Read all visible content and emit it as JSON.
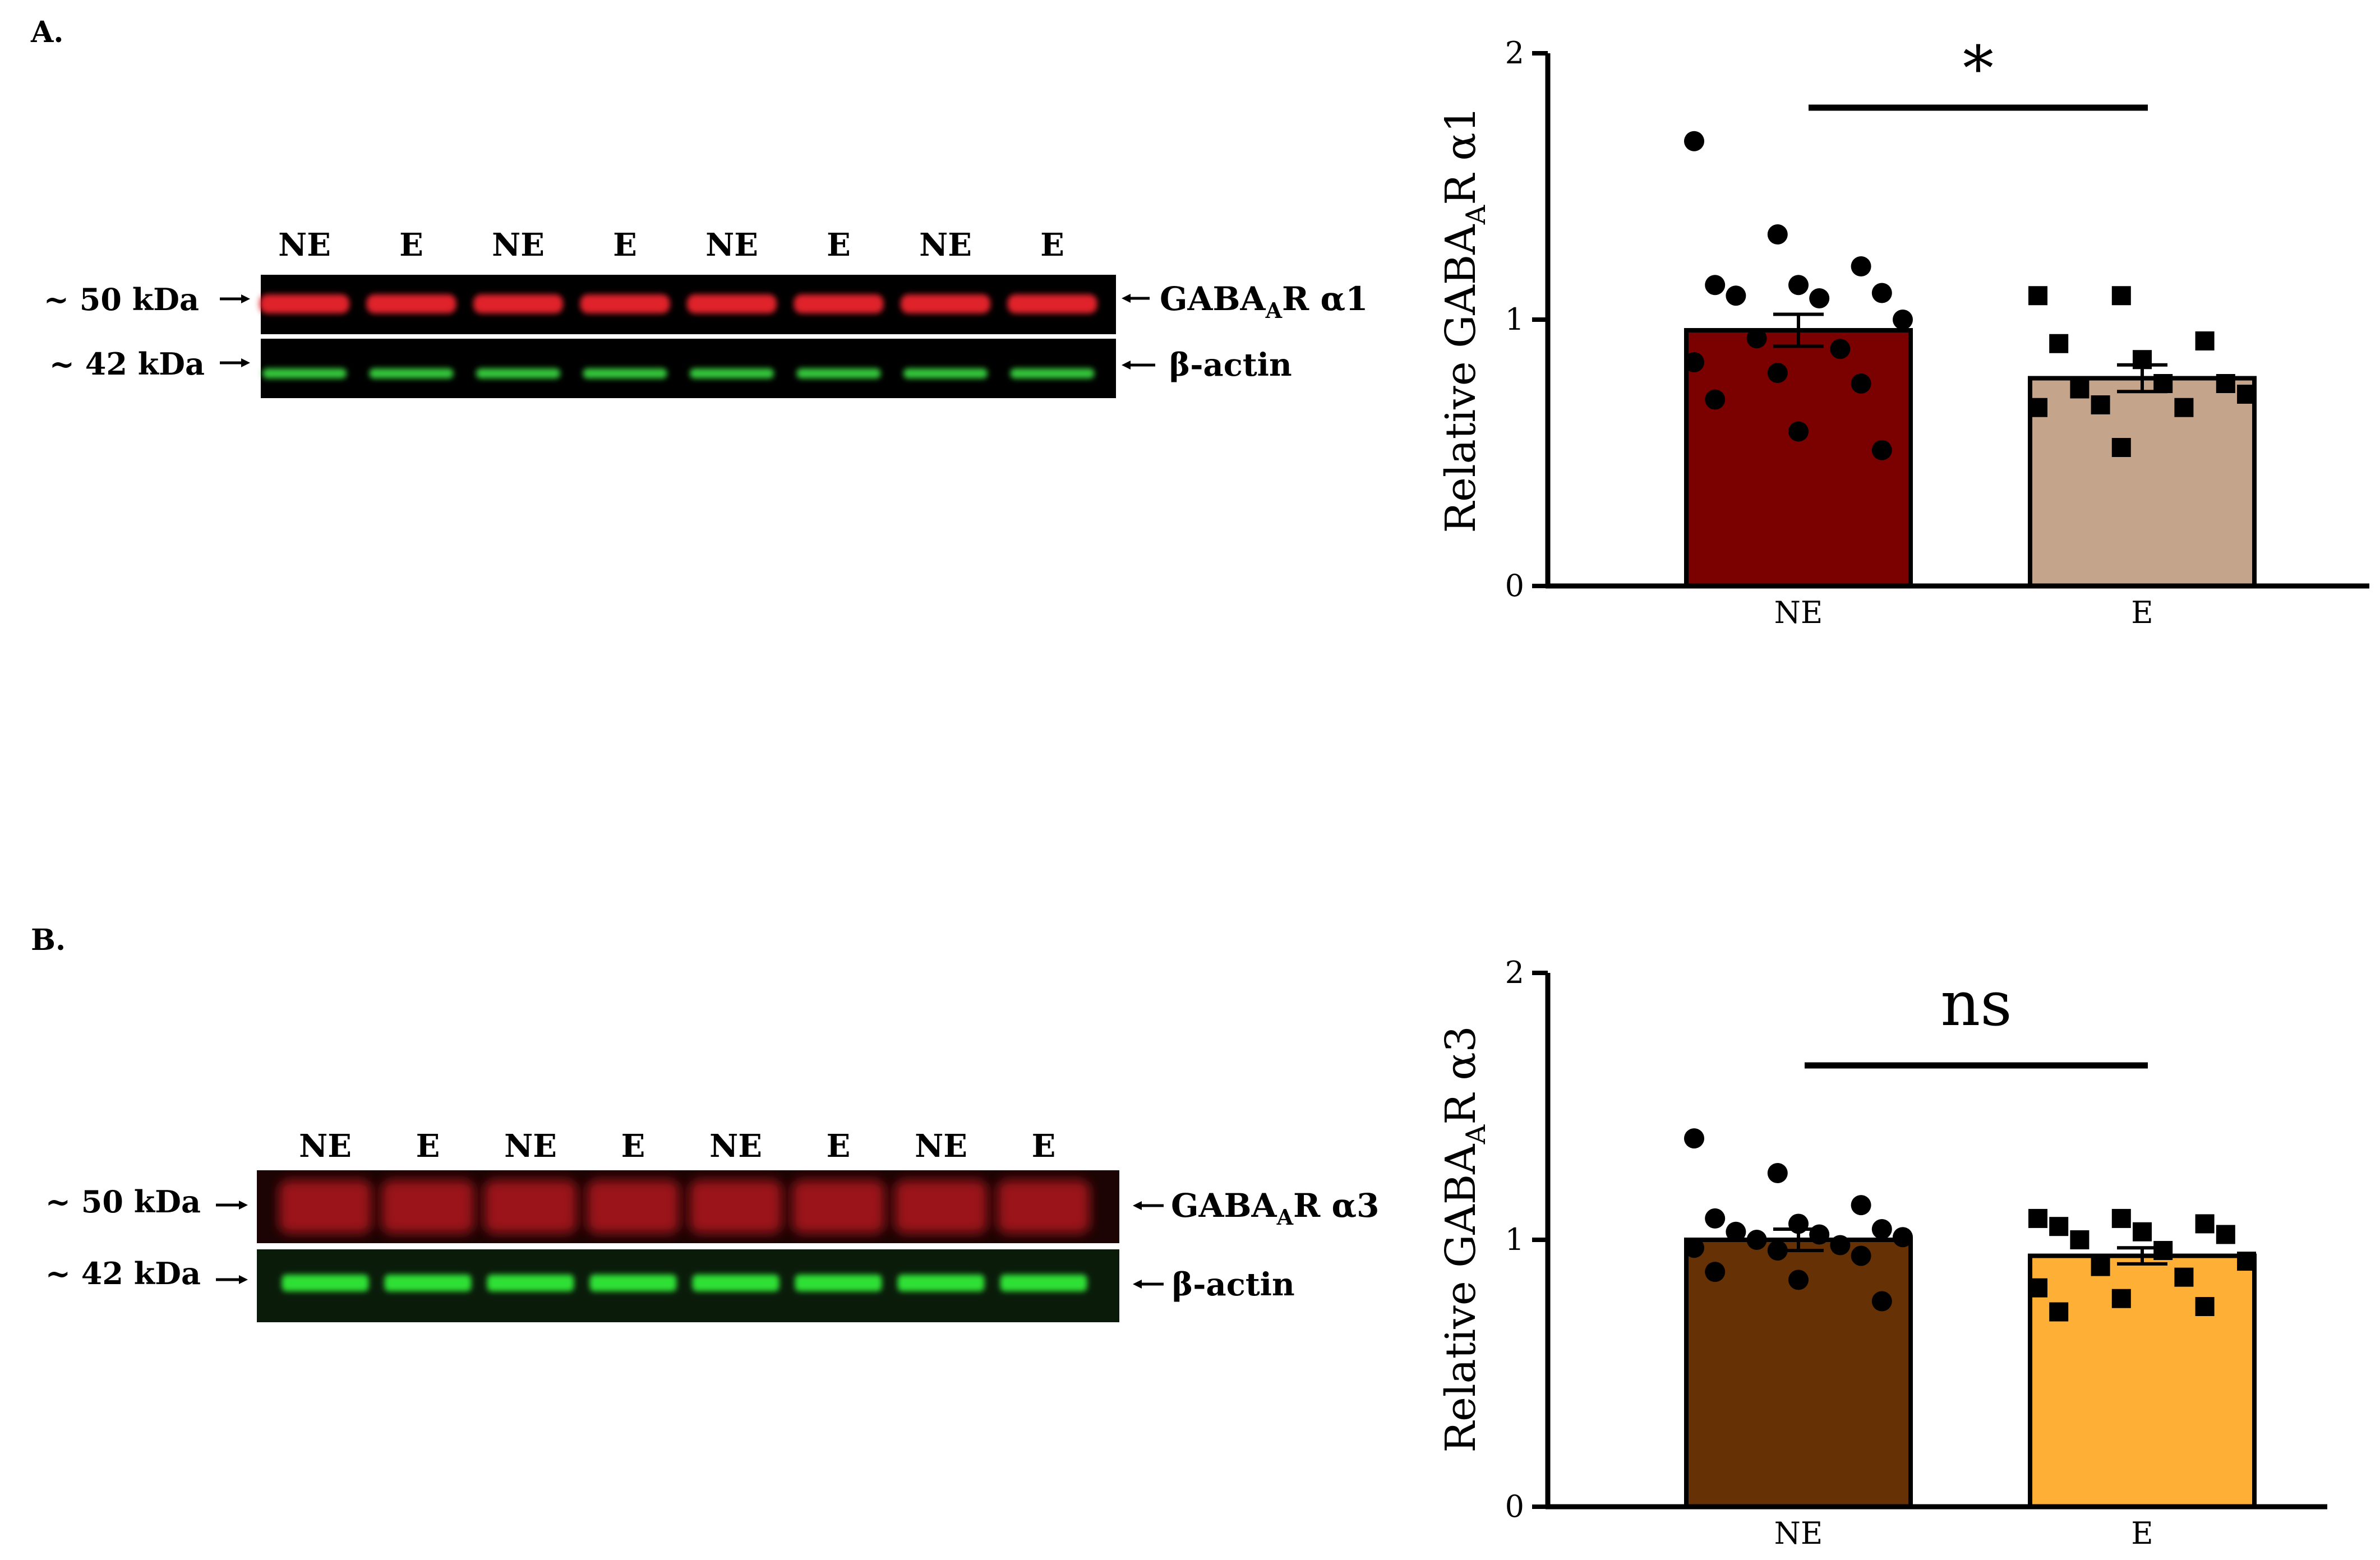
{
  "panel_a": {
    "label": "A.",
    "blot": {
      "lanes": [
        "NE",
        "E",
        "NE",
        "E",
        "NE",
        "E",
        "NE",
        "E"
      ],
      "marker_top": "~ 50 kDa",
      "marker_bottom": "~ 42 kDa",
      "band_top_protein": "GABA",
      "band_top_sub": "A",
      "band_top_suffix": "R α1",
      "band_bottom": "β-actin",
      "top_color": "#e0242c",
      "bottom_color": "#34c83a"
    },
    "chart": {
      "type": "bar",
      "ylabel_main": "Relative GABA",
      "ylabel_sub": "A",
      "ylabel_suffix": "R α1",
      "categories": [
        "NE",
        "E"
      ],
      "values": [
        0.96,
        0.78
      ],
      "sem": [
        0.06,
        0.05
      ],
      "ylim": [
        0,
        2
      ],
      "ticks": [
        "0",
        "1",
        "2"
      ],
      "bar_colors": [
        "#7b0000",
        "#c4a58b"
      ],
      "significance": "*",
      "points": [
        [
          1.67,
          1.32,
          1.2,
          1.13,
          1.13,
          1.1,
          1.09,
          1.08,
          1.0,
          0.93,
          0.89,
          0.84,
          0.8,
          0.76,
          0.7,
          0.58,
          0.51
        ],
        [
          1.09,
          1.09,
          0.92,
          0.91,
          0.85,
          0.76,
          0.74,
          0.76,
          0.72,
          0.68,
          0.67,
          0.67,
          0.52
        ]
      ]
    }
  },
  "panel_b": {
    "label": "B.",
    "blot": {
      "lanes": [
        "NE",
        "E",
        "NE",
        "E",
        "NE",
        "E",
        "NE",
        "E"
      ],
      "marker_top": "~ 50 kDa",
      "marker_bottom": "~ 42 kDa",
      "band_top_protein": "GABA",
      "band_top_sub": "A",
      "band_top_suffix": "R α3",
      "band_bottom": "β-actin",
      "top_color": "#a8121a",
      "bottom_color": "#2fe036"
    },
    "chart": {
      "type": "bar",
      "ylabel_main": "Relative GABA",
      "ylabel_sub": "A",
      "ylabel_suffix": "R α3",
      "categories": [
        "NE",
        "E"
      ],
      "values": [
        1.0,
        0.94
      ],
      "sem": [
        0.04,
        0.03
      ],
      "ylim": [
        0,
        2
      ],
      "ticks": [
        "0",
        "1",
        "2"
      ],
      "bar_colors": [
        "#663105",
        "#fdb035"
      ],
      "significance": "ns",
      "points": [
        [
          1.38,
          1.25,
          1.13,
          1.08,
          1.06,
          1.04,
          1.03,
          1.02,
          1.01,
          1.0,
          0.98,
          0.97,
          0.96,
          0.94,
          0.88,
          0.85,
          0.77
        ],
        [
          1.08,
          1.08,
          1.06,
          1.05,
          1.03,
          1.02,
          1.0,
          0.96,
          0.92,
          0.9,
          0.86,
          0.82,
          0.78,
          0.75,
          0.73
        ]
      ]
    }
  }
}
